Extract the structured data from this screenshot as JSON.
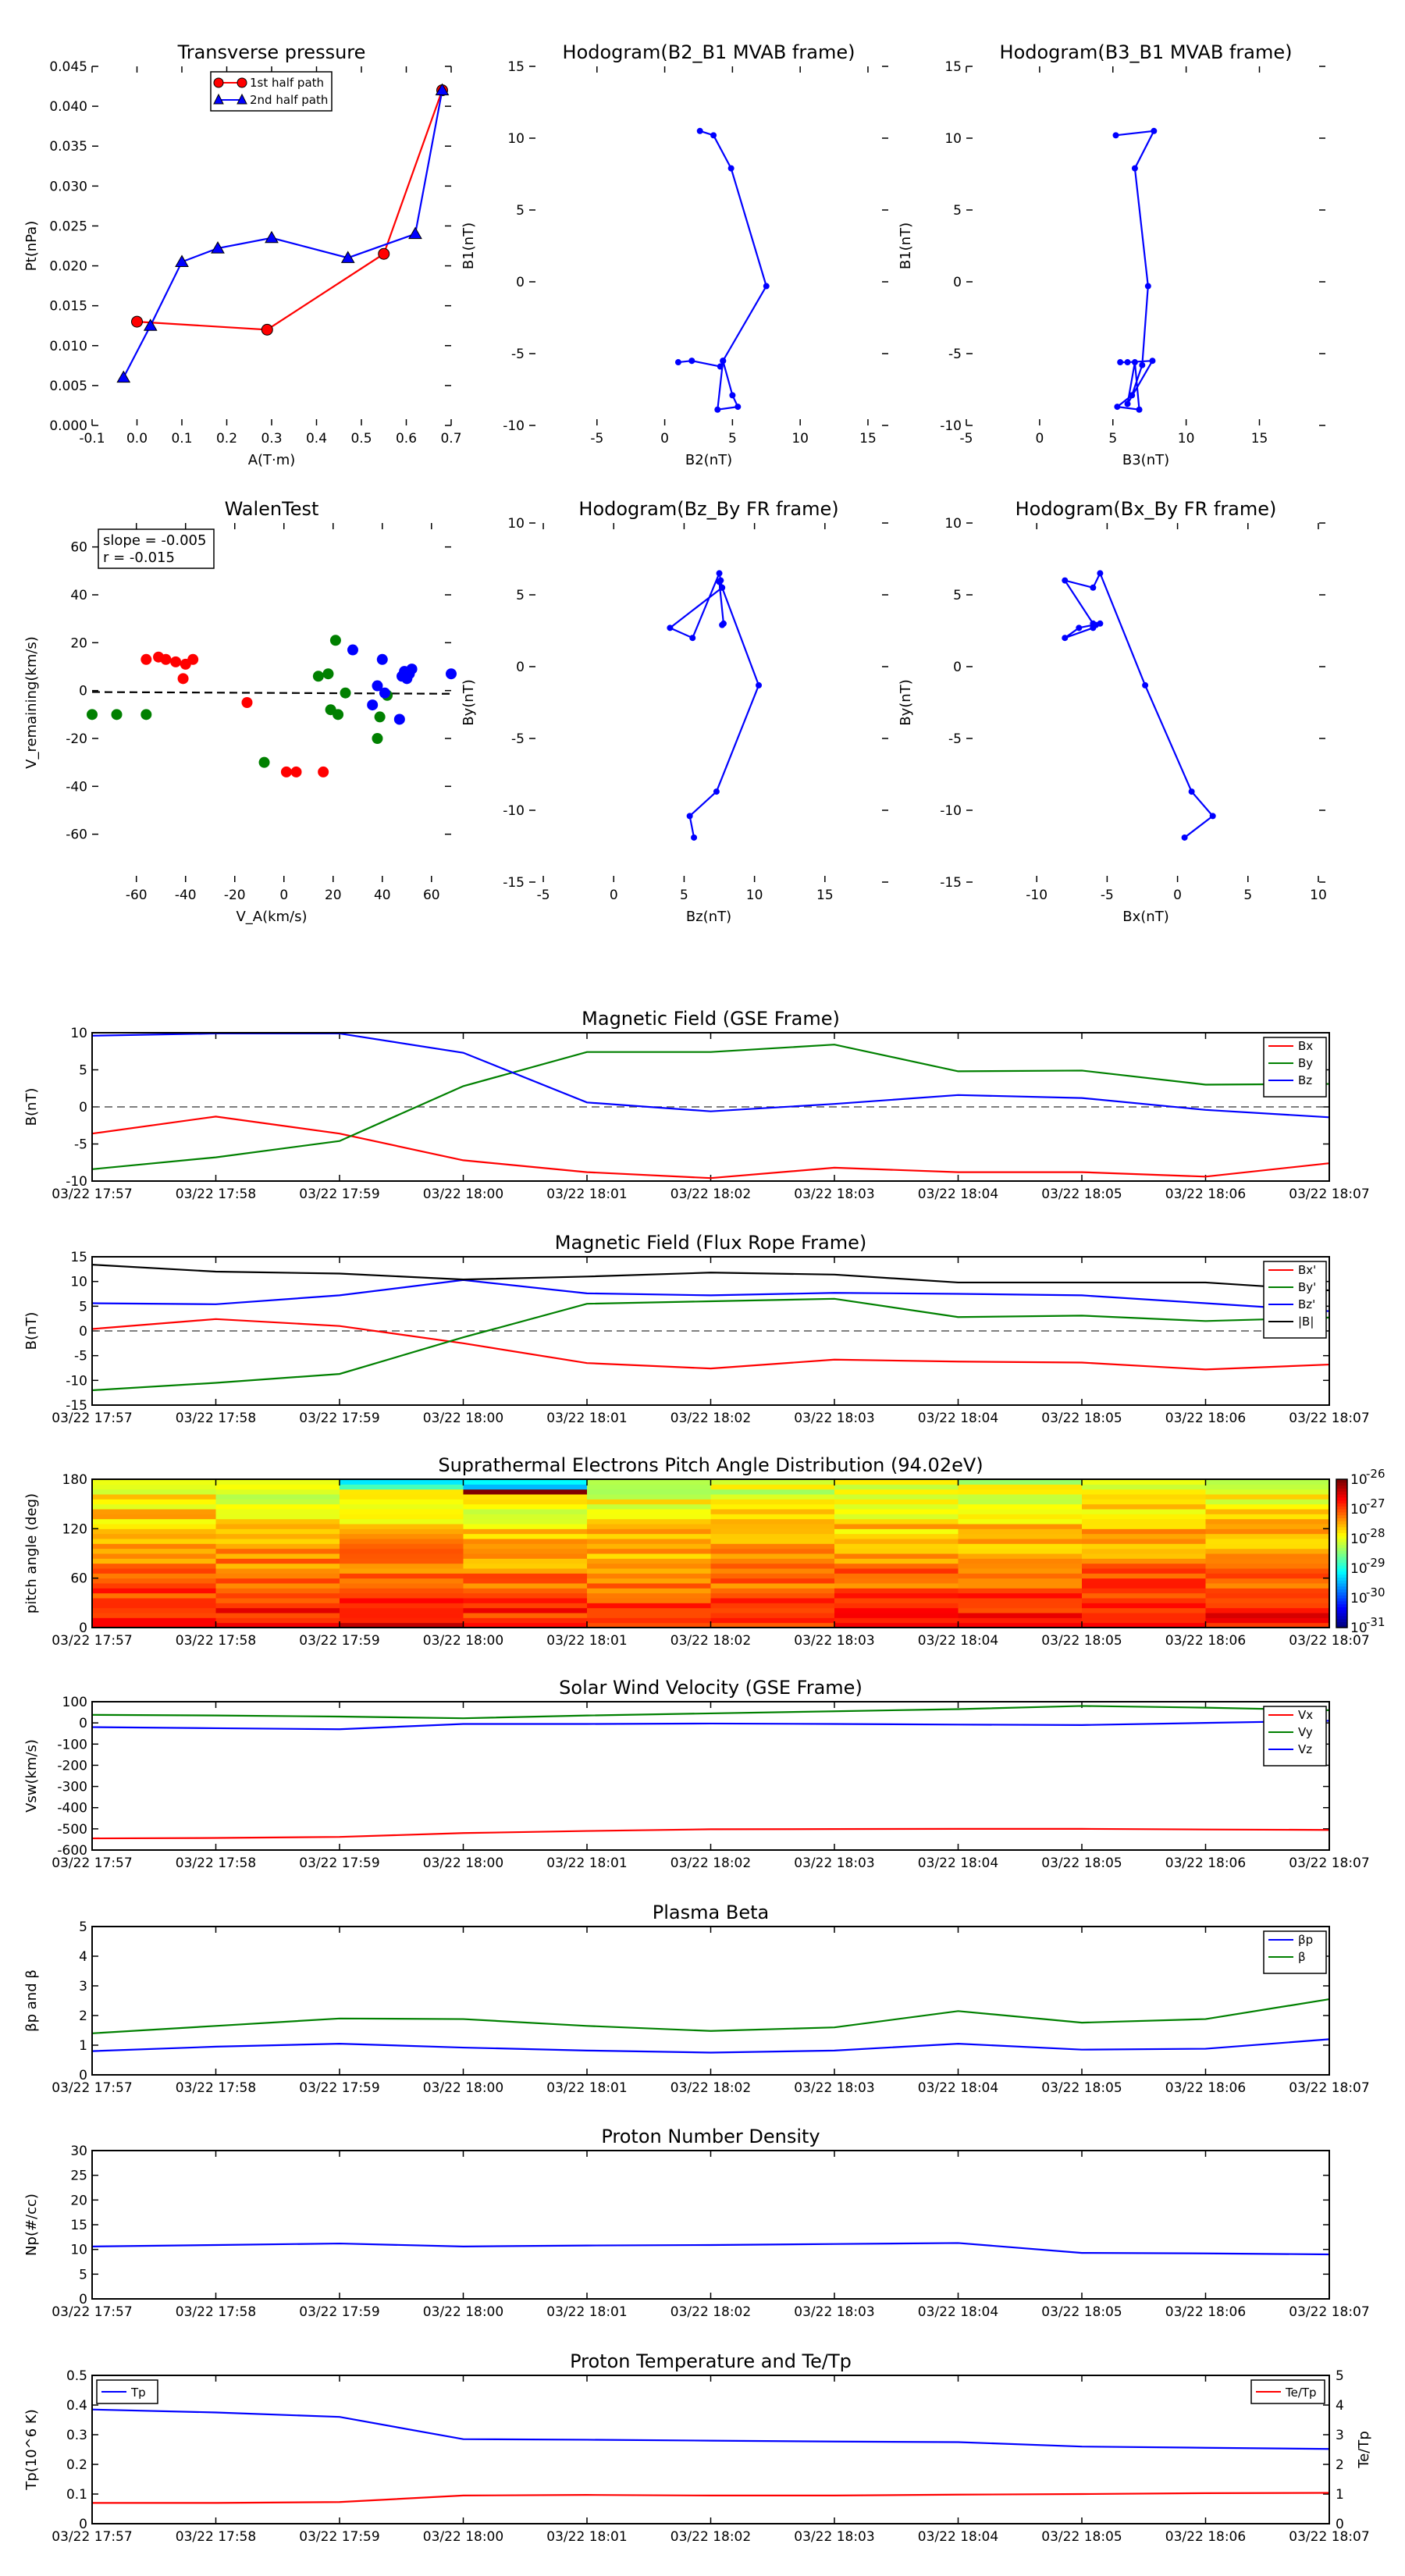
{
  "colors": {
    "red": "#ff0000",
    "green": "#008000",
    "blue": "#0000ff",
    "black": "#000000",
    "dark_red": "#c00000"
  },
  "chart_data": [
    {
      "id": "tp",
      "type": "line",
      "title": "Transverse pressure",
      "xlabel": "A(T·m)",
      "ylabel": "Pt(nPa)",
      "xlim": [
        -0.1,
        0.7
      ],
      "ylim": [
        0.0,
        0.045
      ],
      "xticks": [
        "-0.1",
        "0.0",
        "0.1",
        "0.2",
        "0.3",
        "0.4",
        "0.5",
        "0.6",
        "0.7"
      ],
      "yticks": [
        "0.000",
        "0.005",
        "0.010",
        "0.015",
        "0.020",
        "0.025",
        "0.030",
        "0.035",
        "0.040",
        "0.045"
      ],
      "legend": [
        "1st half path",
        "2nd half path"
      ],
      "series": [
        {
          "name": "1st half path",
          "color": "red",
          "marker": "circle",
          "x": [
            0.0,
            0.29,
            0.55,
            0.68
          ],
          "y": [
            0.013,
            0.012,
            0.0215,
            0.042
          ]
        },
        {
          "name": "2nd half path",
          "color": "blue",
          "marker": "triangle",
          "x": [
            -0.03,
            0.03,
            0.1,
            0.18,
            0.3,
            0.47,
            0.62,
            0.68
          ],
          "y": [
            0.006,
            0.0125,
            0.0205,
            0.0222,
            0.0235,
            0.021,
            0.024,
            0.042
          ]
        }
      ]
    },
    {
      "id": "h1",
      "type": "line",
      "title": "Hodogram(B2_B1 MVAB frame)",
      "xlabel": "B2(nT)",
      "ylabel": "B1(nT)",
      "xlim": [
        -10,
        16.5
      ],
      "ylim": [
        -10,
        15
      ],
      "xticks": [
        "-5",
        "0",
        "5",
        "10",
        "15"
      ],
      "yticks": [
        "-10",
        "-5",
        "0",
        "5",
        "10",
        "15"
      ],
      "series": [
        {
          "color": "blue",
          "marker": "dot",
          "x": [
            2.6,
            3.6,
            4.9,
            7.5,
            4.3,
            4.1,
            2.0,
            1.0,
            2.0
          ],
          "y": [
            10.5,
            10.2,
            7.9,
            -0.3,
            -5.5,
            -5.9,
            -5.5,
            -5.6,
            -5.5
          ]
        },
        {
          "color": "blue",
          "marker": "dot",
          "x": [
            4.3,
            5.0,
            5.4,
            3.9,
            4.3
          ],
          "y": [
            -5.5,
            -7.9,
            -8.7,
            -8.9,
            -5.5
          ]
        }
      ]
    },
    {
      "id": "h2",
      "type": "line",
      "title": "Hodogram(B3_B1 MVAB frame)",
      "xlabel": "B3(nT)",
      "ylabel": "B1(nT)",
      "xlim": [
        -5,
        19.5
      ],
      "ylim": [
        -10,
        15
      ],
      "xticks": [
        "-5",
        "0",
        "5",
        "10",
        "15"
      ],
      "yticks": [
        "-10",
        "-5",
        "0",
        "5",
        "10",
        "15"
      ],
      "series": [
        {
          "color": "blue",
          "marker": "dot",
          "x": [
            5.2,
            7.8,
            6.5,
            7.4,
            7.0,
            6.3,
            5.3,
            6.8,
            6.5,
            6.0,
            7.7,
            6.0,
            5.5
          ],
          "y": [
            10.2,
            10.5,
            7.9,
            -0.3,
            -5.8,
            -7.9,
            -8.7,
            -8.9,
            -5.6,
            -8.5,
            -5.5,
            -5.6,
            -5.6
          ]
        }
      ]
    },
    {
      "id": "wt",
      "type": "scatter",
      "title": "WalenTest",
      "xlabel": "V_A(km/s)",
      "ylabel": "V_remaining(km/s)",
      "xlim": [
        -78,
        68
      ],
      "ylim": [
        -80,
        70
      ],
      "xticks": [
        "-60",
        "-40",
        "-20",
        "0",
        "20",
        "40",
        "60"
      ],
      "yticks": [
        "-60",
        "-40",
        "-20",
        "0",
        "20",
        "40",
        "60"
      ],
      "annotation": [
        "slope = -0.005",
        "r = -0.015"
      ],
      "fit": {
        "slope": -0.005,
        "intercept": -1.0
      },
      "series": [
        {
          "color": "red",
          "x": [
            -56,
            -51,
            -48,
            -44,
            -41,
            -40,
            -37,
            -15,
            1,
            5,
            16
          ],
          "y": [
            13,
            14,
            13,
            12,
            5,
            11,
            13,
            -5,
            -34,
            -34,
            -34
          ]
        },
        {
          "color": "green",
          "x": [
            -78,
            -68,
            -56,
            -8,
            14,
            18,
            19,
            21,
            22,
            25,
            38,
            39,
            42
          ],
          "y": [
            -10,
            -10,
            -10,
            -30,
            6,
            7,
            -8,
            21,
            -10,
            -1,
            -20,
            -11,
            -2
          ]
        },
        {
          "color": "blue",
          "x": [
            28,
            36,
            38,
            40,
            41,
            47,
            48,
            49,
            50,
            51,
            52,
            68
          ],
          "y": [
            17,
            -6,
            2,
            13,
            -1,
            -12,
            6,
            8,
            5,
            7,
            9,
            7
          ]
        }
      ]
    },
    {
      "id": "h3",
      "type": "line",
      "title": "Hodogram(Bz_By FR frame)",
      "xlabel": "Bz(nT)",
      "ylabel": "By(nT)",
      "xlim": [
        -6,
        19.5
      ],
      "ylim": [
        -15,
        10
      ],
      "xticks": [
        "-5",
        "0",
        "5",
        "10",
        "15"
      ],
      "yticks": [
        "-15",
        "-10",
        "-5",
        "0",
        "5",
        "10"
      ],
      "series": [
        {
          "color": "blue",
          "marker": "dot",
          "x": [
            5.7,
            5.4,
            7.3,
            10.3,
            7.7,
            7.6,
            7.5,
            5.6,
            4.0,
            7.7,
            7.5,
            7.8,
            7.7
          ],
          "y": [
            -11.9,
            -10.4,
            -8.7,
            -1.3,
            5.5,
            6.0,
            6.5,
            2.0,
            2.7,
            5.5,
            5.9,
            3.0,
            2.9
          ]
        }
      ]
    },
    {
      "id": "h4",
      "type": "line",
      "title": "Hodogram(Bx_By FR frame)",
      "xlabel": "Bx(nT)",
      "ylabel": "By(nT)",
      "xlim": [
        -15,
        10.5
      ],
      "ylim": [
        -15,
        10
      ],
      "xticks": [
        "-10",
        "-5",
        "0",
        "5",
        "10"
      ],
      "yticks": [
        "-15",
        "-10",
        "-5",
        "0",
        "5",
        "10"
      ],
      "series": [
        {
          "color": "blue",
          "marker": "dot",
          "x": [
            0.5,
            2.5,
            1.0,
            -2.3,
            -5.5,
            -6.0,
            -8.0,
            -6.0,
            -5.5,
            -7.0,
            -8.0,
            -6.0,
            -5.8
          ],
          "y": [
            -11.9,
            -10.4,
            -8.7,
            -1.3,
            6.5,
            5.5,
            6.0,
            3.0,
            3.0,
            2.7,
            2.0,
            2.7,
            2.9
          ]
        }
      ]
    },
    {
      "id": "mfgse",
      "type": "line",
      "title": "Magnetic Field (GSE Frame)",
      "ylabel": "B(nT)",
      "ylim": [
        -10,
        10
      ],
      "yticks": [
        "-10",
        "-5",
        "0",
        "5",
        "10"
      ],
      "zero_line": true,
      "legend_pos": "right",
      "series": [
        {
          "name": "Bx",
          "color": "red",
          "values": [
            -3.6,
            -1.3,
            -3.6,
            -7.2,
            -8.8,
            -9.6,
            -8.2,
            -8.8,
            -8.8,
            -9.4,
            -7.6
          ]
        },
        {
          "name": "By",
          "color": "green",
          "values": [
            -8.4,
            -6.8,
            -4.6,
            2.8,
            7.4,
            7.4,
            8.4,
            4.8,
            4.9,
            3.0,
            3.1
          ]
        },
        {
          "name": "Bz",
          "color": "blue",
          "values": [
            9.6,
            9.9,
            9.9,
            7.3,
            0.6,
            -0.6,
            0.4,
            1.6,
            1.2,
            -0.4,
            -1.4
          ]
        }
      ]
    },
    {
      "id": "mffr",
      "type": "line",
      "title": "Magnetic Field (Flux Rope Frame)",
      "ylabel": "B(nT)",
      "ylim": [
        -15,
        15
      ],
      "yticks": [
        "-15",
        "-10",
        "-5",
        "0",
        "5",
        "10",
        "15"
      ],
      "zero_line": true,
      "legend_pos": "right",
      "series": [
        {
          "name": "Bx'",
          "color": "red",
          "values": [
            0.4,
            2.4,
            1.0,
            -2.5,
            -6.5,
            -7.6,
            -5.8,
            -6.2,
            -6.4,
            -7.8,
            -6.8
          ]
        },
        {
          "name": "By'",
          "color": "green",
          "values": [
            -12.0,
            -10.5,
            -8.7,
            -1.3,
            5.5,
            6.0,
            6.5,
            2.8,
            3.1,
            2.0,
            2.7
          ]
        },
        {
          "name": "Bz'",
          "color": "blue",
          "values": [
            5.6,
            5.4,
            7.2,
            10.3,
            7.6,
            7.2,
            7.7,
            7.5,
            7.2,
            5.6,
            4.0
          ]
        },
        {
          "name": "|B|",
          "color": "black",
          "values": [
            13.4,
            12.0,
            11.6,
            10.4,
            11.0,
            11.8,
            11.4,
            9.8,
            9.8,
            9.8,
            8.2
          ]
        }
      ]
    },
    {
      "id": "pad",
      "type": "heatmap",
      "title": "Suprathermal Electrons Pitch Angle Distribution (94.02eV)",
      "ylabel": "pitch angle (deg)",
      "ylim": [
        0,
        180
      ],
      "yticks": [
        "0",
        "60",
        "120",
        "180"
      ],
      "colorbar_ticks": [
        "10",
        "10",
        "10",
        "10",
        "10",
        "10"
      ],
      "colorbar_exp": [
        "-26",
        "-27",
        "-28",
        "-29",
        "-30",
        "-31"
      ],
      "colorbar_range": [
        -31,
        -26
      ],
      "n_time": 10,
      "n_angle": 30,
      "time_bias": [
        0.0,
        0.3,
        0.1,
        0.5,
        0.4,
        0.6,
        0.3,
        0.2,
        0.1,
        0.2
      ],
      "value_note": "log10 intensity ranging roughly -29 to -26"
    },
    {
      "id": "vsw",
      "type": "line",
      "title": "Solar Wind Velocity (GSE Frame)",
      "ylabel": "Vsw(km/s)",
      "ylim": [
        -600,
        100
      ],
      "yticks": [
        "-600",
        "-500",
        "-400",
        "-300",
        "-200",
        "-100",
        "0",
        "100"
      ],
      "legend_pos": "right",
      "series": [
        {
          "name": "Vx",
          "color": "red",
          "values": [
            -545,
            -543,
            -538,
            -520,
            -510,
            -502,
            -501,
            -500,
            -500,
            -503,
            -505
          ]
        },
        {
          "name": "Vy",
          "color": "green",
          "values": [
            38,
            35,
            30,
            22,
            35,
            45,
            55,
            65,
            80,
            72,
            60
          ]
        },
        {
          "name": "Vz",
          "color": "blue",
          "values": [
            -20,
            -25,
            -30,
            -5,
            -5,
            -3,
            -5,
            -8,
            -10,
            0,
            10
          ]
        }
      ]
    },
    {
      "id": "beta",
      "type": "line",
      "title": "Plasma Beta",
      "ylabel": "βp and β",
      "ylim": [
        0,
        5
      ],
      "yticks": [
        "0",
        "1",
        "2",
        "3",
        "4",
        "5"
      ],
      "legend_pos": "right",
      "series": [
        {
          "name": "βp",
          "color": "blue",
          "values": [
            0.8,
            0.95,
            1.05,
            0.92,
            0.82,
            0.75,
            0.82,
            1.05,
            0.85,
            0.88,
            1.2
          ]
        },
        {
          "name": "β",
          "color": "green",
          "values": [
            1.4,
            1.65,
            1.9,
            1.88,
            1.65,
            1.48,
            1.6,
            2.15,
            1.76,
            1.88,
            2.55
          ]
        }
      ]
    },
    {
      "id": "np",
      "type": "line",
      "title": "Proton Number Density",
      "ylabel": "Np(#/cc)",
      "ylim": [
        0,
        30
      ],
      "yticks": [
        "0",
        "5",
        "10",
        "15",
        "20",
        "25",
        "30"
      ],
      "series": [
        {
          "color": "blue",
          "values": [
            10.6,
            10.9,
            11.2,
            10.6,
            10.8,
            10.9,
            11.1,
            11.3,
            9.3,
            9.2,
            9.0
          ]
        }
      ]
    },
    {
      "id": "tp2",
      "type": "line",
      "title": "Proton Temperature and Te/Tp",
      "ylabel": "Tp(10^6 K)",
      "y2label": "Te/Tp",
      "ylim": [
        0,
        0.5
      ],
      "yticks": [
        "0",
        "0.1",
        "0.2",
        "0.3",
        "0.4",
        "0.5"
      ],
      "y2lim": [
        0,
        5
      ],
      "y2ticks": [
        "0",
        "1",
        "2",
        "3",
        "4",
        "5"
      ],
      "legend_left": [
        "Tp"
      ],
      "legend_right": [
        "Te/Tp"
      ],
      "series": [
        {
          "name": "Tp",
          "color": "blue",
          "axis": "left",
          "values": [
            0.385,
            0.375,
            0.36,
            0.285,
            0.283,
            0.28,
            0.277,
            0.275,
            0.26,
            0.256,
            0.252
          ]
        },
        {
          "name": "Te/Tp",
          "color": "red",
          "axis": "right",
          "values": [
            0.7,
            0.7,
            0.73,
            0.95,
            0.97,
            0.95,
            0.95,
            0.98,
            1.0,
            1.03,
            1.04
          ]
        }
      ]
    }
  ],
  "time_ticks": [
    "03/22 17:57",
    "03/22 17:58",
    "03/22 17:59",
    "03/22 18:00",
    "03/22 18:01",
    "03/22 18:02",
    "03/22 18:03",
    "03/22 18:04",
    "03/22 18:05",
    "03/22 18:06",
    "03/22 18:07"
  ]
}
